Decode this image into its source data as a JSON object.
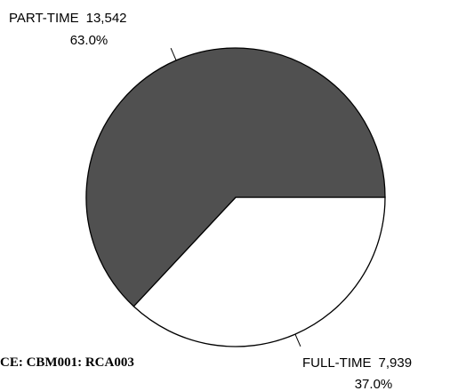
{
  "chart_data": {
    "type": "pie",
    "categories": [
      "PART-TIME",
      "FULL-TIME"
    ],
    "values": [
      13542,
      7939
    ],
    "value_labels": [
      "13,542",
      "7,939"
    ],
    "percents": [
      63.0,
      37.0
    ],
    "percent_labels": [
      "63.0%",
      "37.0%"
    ],
    "colors": [
      "#505050",
      "#ffffff"
    ],
    "source": "CE: CBM001: RCA003"
  }
}
